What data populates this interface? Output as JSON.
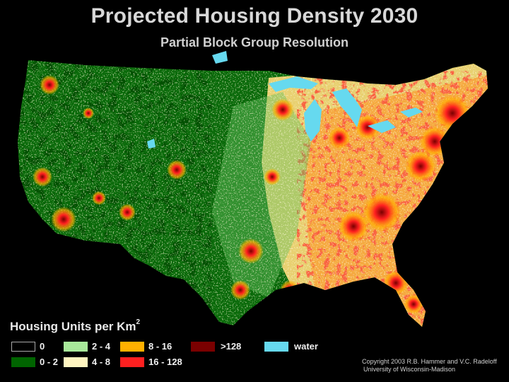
{
  "title": "Projected Housing Density 2030",
  "subtitle": "Partial Block Group Resolution",
  "legend": {
    "title": "Housing Units per Km",
    "title_superscript": "2",
    "items": [
      {
        "label": "0",
        "color": "#000000"
      },
      {
        "label": "0 - 2",
        "color": "#006400"
      },
      {
        "label": "2 - 4",
        "color": "#a8e89a"
      },
      {
        "label": "4 - 8",
        "color": "#fff5c0"
      },
      {
        "label": "8 - 16",
        "color": "#ffb000"
      },
      {
        "label": "16 - 128",
        "color": "#ff2020"
      },
      {
        "label": ">128",
        "color": "#7a0000"
      },
      {
        "label": "water",
        "color": "#66d9ef"
      }
    ]
  },
  "copyright": {
    "line1": "Copyright 2003 R.B. Hammer and V.C. Radeloff",
    "line2": "University of Wisconsin-Madison"
  }
}
